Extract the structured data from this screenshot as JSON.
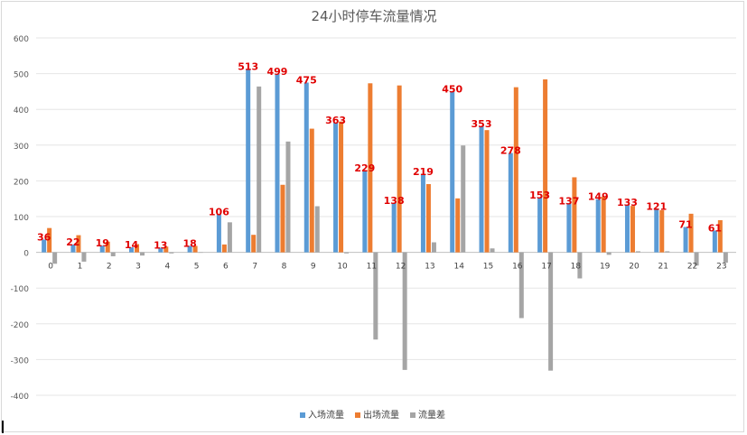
{
  "chart_data": {
    "type": "bar",
    "title": "24小时停车流量情况",
    "xlabel": "",
    "ylabel": "",
    "ylim": [
      -400,
      600
    ],
    "yticks": [
      600,
      500,
      400,
      300,
      200,
      100,
      0,
      -100,
      -200,
      -300,
      -400
    ],
    "grid": true,
    "legend_position": "bottom",
    "categories": [
      "0",
      "1",
      "2",
      "3",
      "4",
      "5",
      "6",
      "7",
      "8",
      "9",
      "10",
      "11",
      "12",
      "13",
      "14",
      "15",
      "16",
      "17",
      "18",
      "19",
      "20",
      "21",
      "22",
      "23"
    ],
    "series": [
      {
        "name": "入场流量",
        "color": "#5b9bd5",
        "values": [
          36,
          22,
          19,
          14,
          13,
          18,
          106,
          513,
          499,
          475,
          363,
          229,
          138,
          219,
          450,
          353,
          278,
          153,
          137,
          149,
          133,
          121,
          71,
          61
        ]
      },
      {
        "name": "出场流量",
        "color": "#ed7d31",
        "values": [
          68,
          48,
          30,
          23,
          16,
          18,
          22,
          49,
          189,
          346,
          366,
          473,
          467,
          191,
          151,
          342,
          462,
          484,
          210,
          156,
          130,
          118,
          108,
          90
        ]
      },
      {
        "name": "流量差",
        "color": "#a5a5a5",
        "values": [
          -32,
          -26,
          -11,
          -9,
          -3,
          0,
          84,
          464,
          310,
          129,
          -3,
          -244,
          -329,
          28,
          299,
          11,
          -184,
          -331,
          -73,
          -7,
          3,
          3,
          -37,
          -29
        ]
      }
    ],
    "data_labels": {
      "series": "入场流量",
      "color": "#e00000"
    }
  }
}
